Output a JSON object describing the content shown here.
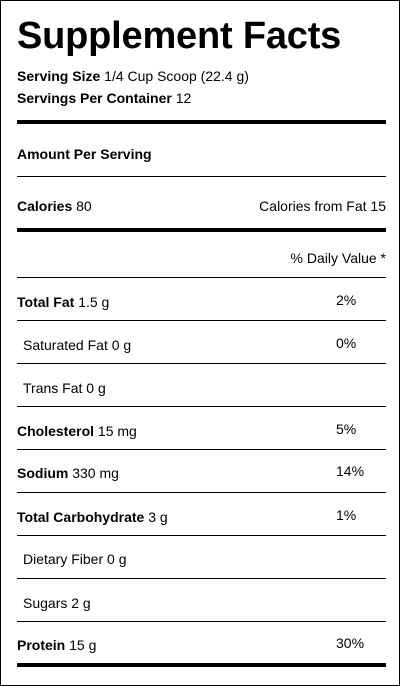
{
  "title": "Supplement Facts",
  "serving_size": {
    "label": "Serving Size",
    "value": "1/4 Cup Scoop (22.4 g)"
  },
  "servings_per_container": {
    "label": "Servings Per Container",
    "value": "12"
  },
  "amount_per_serving": "Amount Per Serving",
  "calories": {
    "label": "Calories",
    "value": "80",
    "from_fat": "Calories from Fat 15"
  },
  "dv_header": "% Daily Value *",
  "nutrients": [
    {
      "label": "Total Fat",
      "amount": "1.5 g",
      "dv": "2%",
      "bold": true
    },
    {
      "label": "Saturated Fat",
      "amount": "0 g",
      "dv": "0%",
      "bold": false
    },
    {
      "label": "Trans Fat",
      "amount": "0 g",
      "dv": "",
      "bold": false
    },
    {
      "label": "Cholesterol",
      "amount": "15 mg",
      "dv": "5%",
      "bold": true
    },
    {
      "label": "Sodium",
      "amount": "330 mg",
      "dv": "14%",
      "bold": true
    },
    {
      "label": "Total Carbohydrate",
      "amount": "3 g",
      "dv": "1%",
      "bold": true
    },
    {
      "label": "Dietary Fiber",
      "amount": "0 g",
      "dv": "",
      "bold": false
    },
    {
      "label": "Sugars",
      "amount": "2 g",
      "dv": "",
      "bold": false
    },
    {
      "label": "Protein",
      "amount": "15 g",
      "dv": "30%",
      "bold": true
    }
  ]
}
